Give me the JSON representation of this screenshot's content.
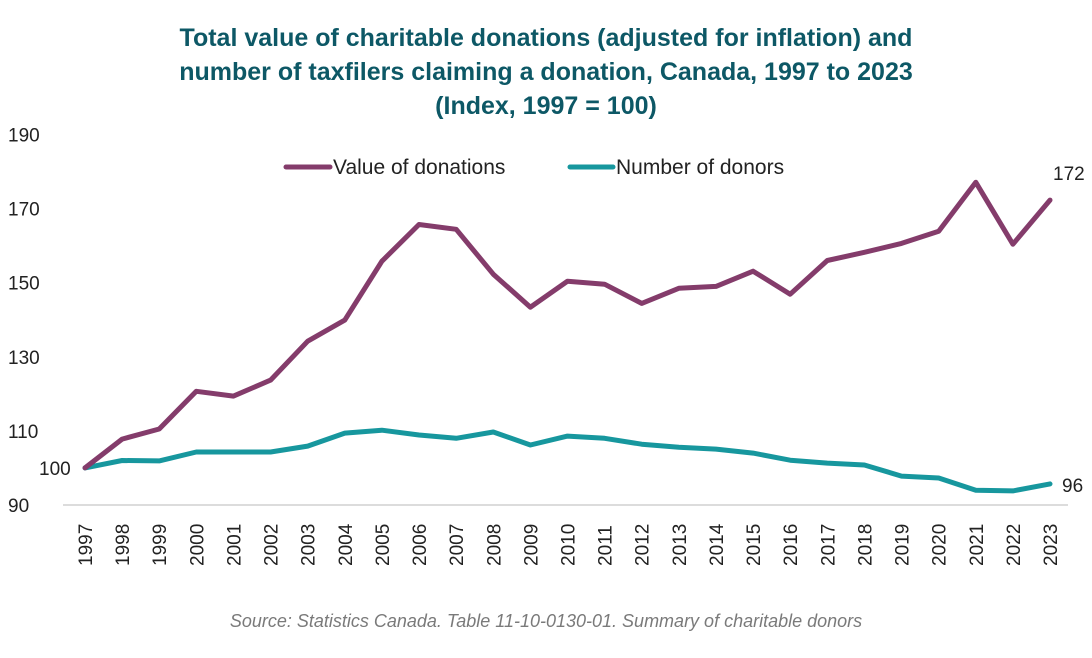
{
  "chart_data": {
    "type": "line",
    "title": [
      "Total value of charitable donations (adjusted for inflation) and",
      "number of taxfilers claiming a donation, Canada, 1997 to 2023",
      "(Index, 1997 = 100)"
    ],
    "xlabel": "",
    "ylabel": "",
    "ylim": [
      90,
      190
    ],
    "yticks": [
      90,
      110,
      130,
      150,
      170,
      190
    ],
    "grid": false,
    "legend_position": "top",
    "x": [
      1997,
      1998,
      1999,
      2000,
      2001,
      2002,
      2003,
      2004,
      2005,
      2006,
      2007,
      2008,
      2009,
      2010,
      2011,
      2012,
      2013,
      2014,
      2015,
      2016,
      2017,
      2018,
      2019,
      2020,
      2021,
      2022,
      2023
    ],
    "series": [
      {
        "name": "Value of donations",
        "color": "#843c6b",
        "values": [
          100,
          107.8,
          110.5,
          120.7,
          119.4,
          123.7,
          134.2,
          139.9,
          155.8,
          165.7,
          164.4,
          152.3,
          143.4,
          150.4,
          149.6,
          144.4,
          148.5,
          149.0,
          153.1,
          146.9,
          156.0,
          158.2,
          160.6,
          163.9,
          177.1,
          160.4,
          172.3
        ]
      },
      {
        "name": "Number of donors",
        "color": "#17979e",
        "values": [
          100,
          102.0,
          101.9,
          104.3,
          104.3,
          104.3,
          105.9,
          109.4,
          110.2,
          108.9,
          108.0,
          109.7,
          106.2,
          108.6,
          108.0,
          106.4,
          105.6,
          105.1,
          104.0,
          102.1,
          101.3,
          100.8,
          97.8,
          97.3,
          94.0,
          93.8,
          95.7
        ]
      }
    ],
    "data_labels": [
      {
        "series": "start",
        "year": 1997,
        "text": "100"
      },
      {
        "series": "Value of donations",
        "year": 2023,
        "text": "172"
      },
      {
        "series": "Number of donors",
        "year": 2023,
        "text": "96"
      }
    ],
    "source": "Source: Statistics Canada. Table 11-10-0130-01. Summary of charitable donors"
  }
}
